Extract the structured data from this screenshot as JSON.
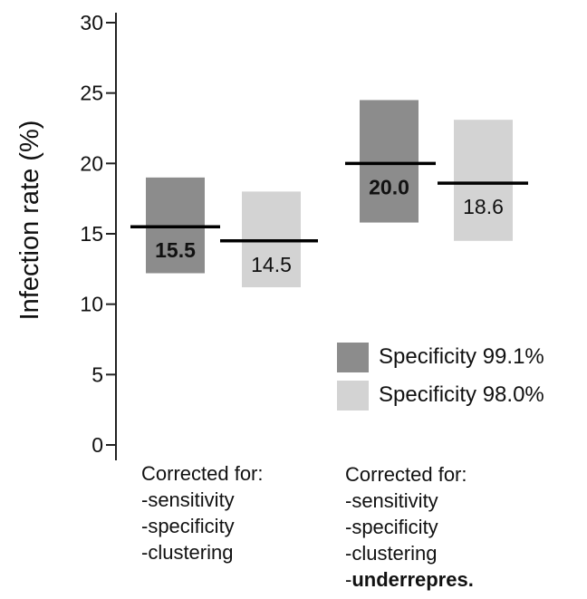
{
  "chart_data": {
    "type": "bar",
    "ylabel": "Infection rate (%)",
    "ylim": [
      0,
      30
    ],
    "yticks": [
      0,
      5,
      10,
      15,
      20,
      25,
      30
    ],
    "ytick_labels": [
      "0",
      "5",
      "10",
      "15",
      "20",
      "25",
      "30"
    ],
    "grid": false,
    "legend_position": "right",
    "categories": [
      {
        "lines": [
          "Corrected for:",
          "-sensitivity",
          "-specificity",
          "-clustering"
        ],
        "bold_line": ""
      },
      {
        "lines": [
          "Corrected for:",
          "-sensitivity",
          "-specificity",
          "-clustering"
        ],
        "bold_prefix": "-",
        "bold_line": "underrepres."
      }
    ],
    "series": [
      {
        "name": "Specificity 99.1%",
        "color": "#8c8c8c",
        "estimate": [
          15.5,
          20.0
        ],
        "estimate_labels": [
          "15.5",
          "20.0"
        ],
        "label_bold": true,
        "low": [
          12.2,
          15.8
        ],
        "high": [
          19.0,
          24.5
        ]
      },
      {
        "name": "Specificity 98.0%",
        "color": "#d3d3d3",
        "estimate": [
          14.5,
          18.6
        ],
        "estimate_labels": [
          "14.5",
          "18.6"
        ],
        "label_bold": false,
        "low": [
          11.2,
          14.5
        ],
        "high": [
          18.0,
          23.1
        ]
      }
    ]
  }
}
